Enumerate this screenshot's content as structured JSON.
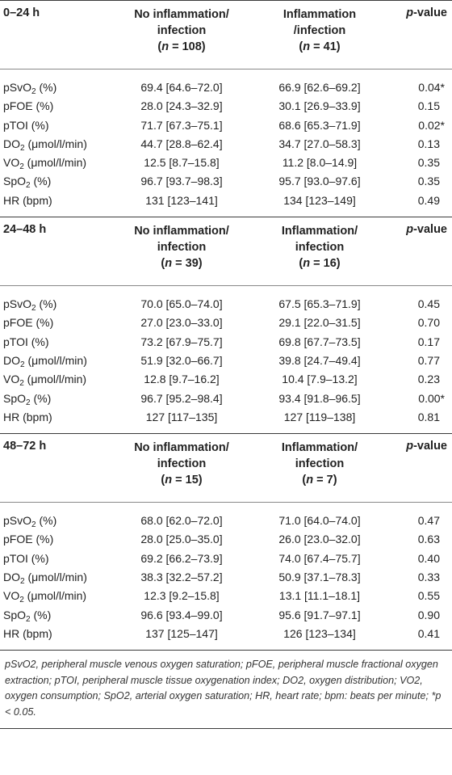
{
  "sections": [
    {
      "period": "0–24 h",
      "col1": [
        "No inflammation/",
        "infection"
      ],
      "col1_n": "108",
      "col2": [
        "Inflammation",
        "/infection"
      ],
      "col2_n": "41",
      "pval_p": "p",
      "pval_rest": "-value",
      "rows": [
        {
          "label": "pSvO",
          "sub": "2",
          "label_tail": " (%)",
          "v1": "69.4 [64.6–72.0]",
          "v2": "66.9 [62.6–69.2]",
          "p": "0.04*"
        },
        {
          "label": "pFOE (%)",
          "sub": "",
          "label_tail": "",
          "v1": "28.0 [24.3–32.9]",
          "v2": "30.1 [26.9–33.9]",
          "p": "0.15"
        },
        {
          "label": "pTOI (%)",
          "sub": "",
          "label_tail": "",
          "v1": "71.7 [67.3–75.1]",
          "v2": "68.6 [65.3–71.9]",
          "p": "0.02*"
        },
        {
          "label": "DO",
          "sub": "2",
          "label_tail": " (μmol/l/min)",
          "v1": "44.7 [28.8–62.4]",
          "v2": "34.7 [27.0–58.3]",
          "p": "0.13"
        },
        {
          "label": "VO",
          "sub": "2",
          "label_tail": " (μmol/l/min)",
          "v1": "12.5 [8.7–15.8]",
          "v2": "11.2 [8.0–14.9]",
          "p": "0.35"
        },
        {
          "label": "SpO",
          "sub": "2",
          "label_tail": " (%)",
          "v1": "96.7 [93.7–98.3]",
          "v2": "95.7 [93.0–97.6]",
          "p": "0.35"
        },
        {
          "label": "HR (bpm)",
          "sub": "",
          "label_tail": "",
          "v1": "131 [123–141]",
          "v2": "134 [123–149]",
          "p": "0.49"
        }
      ]
    },
    {
      "period": "24–48 h",
      "col1": [
        "No inflammation/",
        "infection"
      ],
      "col1_n": "39",
      "col2": [
        "Inflammation/",
        "infection"
      ],
      "col2_n": "16",
      "pval_p": "p",
      "pval_rest": "-value",
      "rows": [
        {
          "label": "pSvO",
          "sub": "2",
          "label_tail": " (%)",
          "v1": "70.0 [65.0–74.0]",
          "v2": "67.5 [65.3–71.9]",
          "p": "0.45"
        },
        {
          "label": "pFOE (%)",
          "sub": "",
          "label_tail": "",
          "v1": "27.0 [23.0–33.0]",
          "v2": "29.1 [22.0–31.5]",
          "p": "0.70"
        },
        {
          "label": "pTOI (%)",
          "sub": "",
          "label_tail": "",
          "v1": "73.2 [67.9–75.7]",
          "v2": "69.8 [67.7–73.5]",
          "p": "0.17"
        },
        {
          "label": "DO",
          "sub": "2",
          "label_tail": " (μmol/l/min)",
          "v1": "51.9 [32.0–66.7]",
          "v2": "39.8 [24.7–49.4]",
          "p": "0.77"
        },
        {
          "label": "VO",
          "sub": "2",
          "label_tail": " (μmol/l/min)",
          "v1": "12.8 [9.7–16.2]",
          "v2": "10.4 [7.9–13.2]",
          "p": "0.23"
        },
        {
          "label": "SpO",
          "sub": "2",
          "label_tail": " (%)",
          "v1": "96.7 [95.2–98.4]",
          "v2": "93.4 [91.8–96.5]",
          "p": "0.00*"
        },
        {
          "label": "HR (bpm)",
          "sub": "",
          "label_tail": "",
          "v1": "127 [117–135]",
          "v2": "127 [119–138]",
          "p": "0.81"
        }
      ]
    },
    {
      "period": "48–72 h",
      "col1": [
        "No inflammation/",
        "infection"
      ],
      "col1_n": "15",
      "col2": [
        "Inflammation/",
        "infection"
      ],
      "col2_n": "7",
      "pval_p": "p",
      "pval_rest": "-value",
      "rows": [
        {
          "label": "pSvO",
          "sub": "2",
          "label_tail": " (%)",
          "v1": "68.0 [62.0–72.0]",
          "v2": "71.0 [64.0–74.0]",
          "p": "0.47"
        },
        {
          "label": "pFOE (%)",
          "sub": "",
          "label_tail": "",
          "v1": "28.0 [25.0–35.0]",
          "v2": "26.0 [23.0–32.0]",
          "p": "0.63"
        },
        {
          "label": "pTOI (%)",
          "sub": "",
          "label_tail": "",
          "v1": "69.2 [66.2–73.9]",
          "v2": "74.0 [67.4–75.7]",
          "p": "0.40"
        },
        {
          "label": "DO",
          "sub": "2",
          "label_tail": " (μmol/l/min)",
          "v1": "38.3 [32.2–57.2]",
          "v2": "50.9 [37.1–78.3]",
          "p": "0.33"
        },
        {
          "label": "VO",
          "sub": "2",
          "label_tail": " (μmol/l/min)",
          "v1": "12.3 [9.2–15.8]",
          "v2": "13.1 [11.1–18.1]",
          "p": "0.55"
        },
        {
          "label": "SpO",
          "sub": "2",
          "label_tail": " (%)",
          "v1": "96.6 [93.4–99.0]",
          "v2": "95.6 [91.7–97.1]",
          "p": "0.90"
        },
        {
          "label": "HR (bpm)",
          "sub": "",
          "label_tail": "",
          "v1": "137 [125–147]",
          "v2": "126 [123–134]",
          "p": "0.41"
        }
      ]
    }
  ],
  "footnote": "pSvO2, peripheral muscle venous oxygen saturation; pFOE, peripheral muscle fractional oxygen extraction; pTOI, peripheral muscle tissue oxygenation index; DO2, oxygen distribution; VO2, oxygen consumption; SpO2, arterial oxygen saturation; HR, heart rate; bpm: beats per minute; *p < 0.05."
}
